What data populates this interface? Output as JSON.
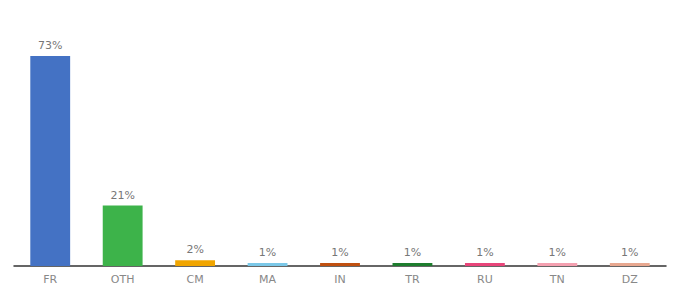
{
  "chart_data": {
    "type": "bar",
    "categories": [
      "FR",
      "OTH",
      "CM",
      "MA",
      "IN",
      "TR",
      "RU",
      "TN",
      "DZ"
    ],
    "values": [
      73,
      21,
      2,
      1,
      1,
      1,
      1,
      1,
      1
    ],
    "value_labels": [
      "73%",
      "21%",
      "2%",
      "1%",
      "1%",
      "1%",
      "1%",
      "1%",
      "1%"
    ],
    "colors": [
      "#4472c4",
      "#3db34a",
      "#f0a500",
      "#7bc8e8",
      "#c05010",
      "#1e7d2e",
      "#e8457a",
      "#f4a0b0",
      "#e8a890"
    ],
    "ylim": [
      0,
      82
    ],
    "data_labels": true,
    "tick_labels": "x",
    "grid": false
  }
}
